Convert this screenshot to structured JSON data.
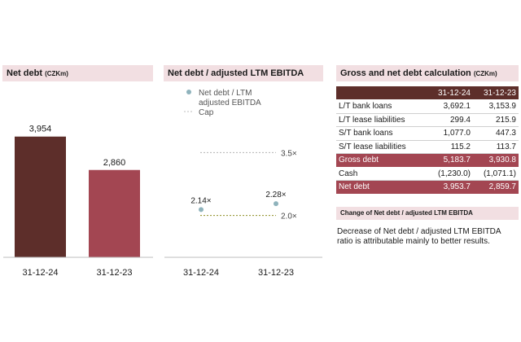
{
  "panels": {
    "net_debt": {
      "title": "Net debt",
      "unit": "(CZKm)"
    },
    "ratio": {
      "title": "Net debt / adjusted LTM EBITDA"
    },
    "gross": {
      "title": "Gross and net debt calculation",
      "unit": "(CZKm)"
    }
  },
  "chart_data": [
    {
      "type": "bar",
      "title": "Net debt (CZKm)",
      "categories": [
        "31-12-24",
        "31-12-23"
      ],
      "values": [
        3954,
        2860
      ],
      "value_labels": [
        "3,954",
        "2,860"
      ],
      "colors": [
        "#5d2e2a",
        "#a34652"
      ],
      "ylim": [
        0,
        4800
      ],
      "grid": false
    },
    {
      "type": "scatter",
      "title": "Net debt / adjusted LTM EBITDA",
      "categories": [
        "31-12-24",
        "31-12-23"
      ],
      "series": [
        {
          "name": "Net debt / LTM adjusted EBITDA",
          "values": [
            2.14,
            2.28
          ],
          "value_labels": [
            "2.14×",
            "2.28×"
          ],
          "color": "#8fb3bc"
        }
      ],
      "caps": [
        {
          "name": "Cap",
          "value": 3.5,
          "label": "3.5×",
          "color": "#bdbdbd"
        },
        {
          "value": 2.0,
          "label": "2.0×",
          "color": "#9a9a3c"
        }
      ],
      "ylim": [
        1.0,
        4.5
      ],
      "legend": "top-left",
      "grid": false
    }
  ],
  "legend": {
    "series_line1": "Net debt / LTM",
    "series_line2": "adjusted EBITDA",
    "cap": "Cap"
  },
  "table": {
    "headers": [
      "",
      "31-12-24",
      "31-12-23"
    ],
    "rows": [
      {
        "label": "L/T bank loans",
        "v24": "3,692.1",
        "v23": "3,153.9",
        "style": "plain"
      },
      {
        "label": "L/T lease liabilities",
        "v24": "299.4",
        "v23": "215.9",
        "style": "plain"
      },
      {
        "label": "S/T bank loans",
        "v24": "1,077.0",
        "v23": "447.3",
        "style": "plain"
      },
      {
        "label": "S/T lease liabilities",
        "v24": "115.2",
        "v23": "113.7",
        "style": "plain"
      },
      {
        "label": "Gross debt",
        "v24": "5,183.7",
        "v23": "3,930.8",
        "style": "hl"
      },
      {
        "label": "Cash",
        "v24": "(1,230.0)",
        "v23": "(1,071.1)",
        "style": "plain"
      },
      {
        "label": "Net debt",
        "v24": "3,953.7",
        "v23": "2,859.7",
        "style": "hl"
      }
    ]
  },
  "change": {
    "title": "Change of Net debt / adjusted LTM EBITDA",
    "text": "Decrease of Net debt / adjusted LTM EBITDA ratio is attributable mainly to better results."
  }
}
